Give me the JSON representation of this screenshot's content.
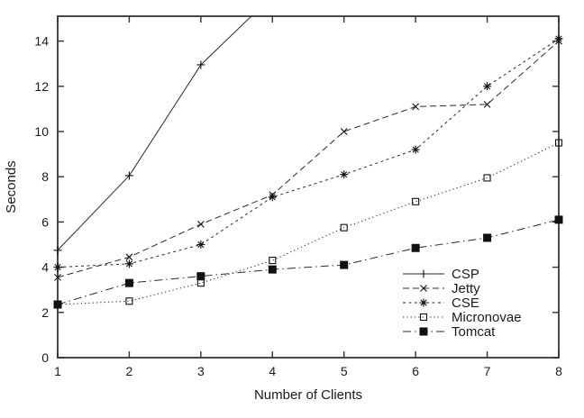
{
  "figure": {
    "background": "#ffffff",
    "line_color": "#2a2a2a",
    "border_color": "#4a4a4a"
  },
  "chart_data": {
    "type": "line",
    "title": "",
    "xlabel": "Number of Clients",
    "ylabel": "Seconds",
    "x": [
      1,
      2,
      3,
      4,
      5,
      6,
      7,
      8
    ],
    "xlim": [
      1,
      8
    ],
    "ylim": [
      0,
      15.1
    ],
    "xticks": [
      1,
      2,
      3,
      4,
      5,
      6,
      7,
      8
    ],
    "yticks": [
      0,
      2,
      4,
      6,
      8,
      10,
      12,
      14
    ],
    "grid": false,
    "legend_position": "inside-lower-right",
    "series": [
      {
        "name": "CSP",
        "marker": "plus",
        "line_style": "solid",
        "values": [
          4.75,
          8.05,
          12.95,
          16.0,
          null,
          null,
          null,
          null
        ],
        "note": "line exits top of plot between x=3 and x=4; value at x=4 estimated from clipped segment"
      },
      {
        "name": "Jetty",
        "marker": "cross",
        "line_style": "dashed",
        "values": [
          3.55,
          4.45,
          5.9,
          7.2,
          10.0,
          11.1,
          11.2,
          14.0
        ]
      },
      {
        "name": "CSE",
        "marker": "asterisk",
        "line_style": "short-dash",
        "values": [
          4.0,
          4.15,
          5.0,
          7.1,
          8.1,
          9.2,
          12.0,
          14.1
        ]
      },
      {
        "name": "Micronovae",
        "marker": "open-square",
        "line_style": "dotted",
        "values": [
          2.35,
          2.5,
          3.3,
          4.3,
          5.75,
          6.9,
          7.95,
          9.5
        ]
      },
      {
        "name": "Tomcat",
        "marker": "filled-square",
        "line_style": "dash-dot",
        "values": [
          2.35,
          3.3,
          3.6,
          3.9,
          4.1,
          4.85,
          5.3,
          6.1
        ]
      }
    ]
  }
}
